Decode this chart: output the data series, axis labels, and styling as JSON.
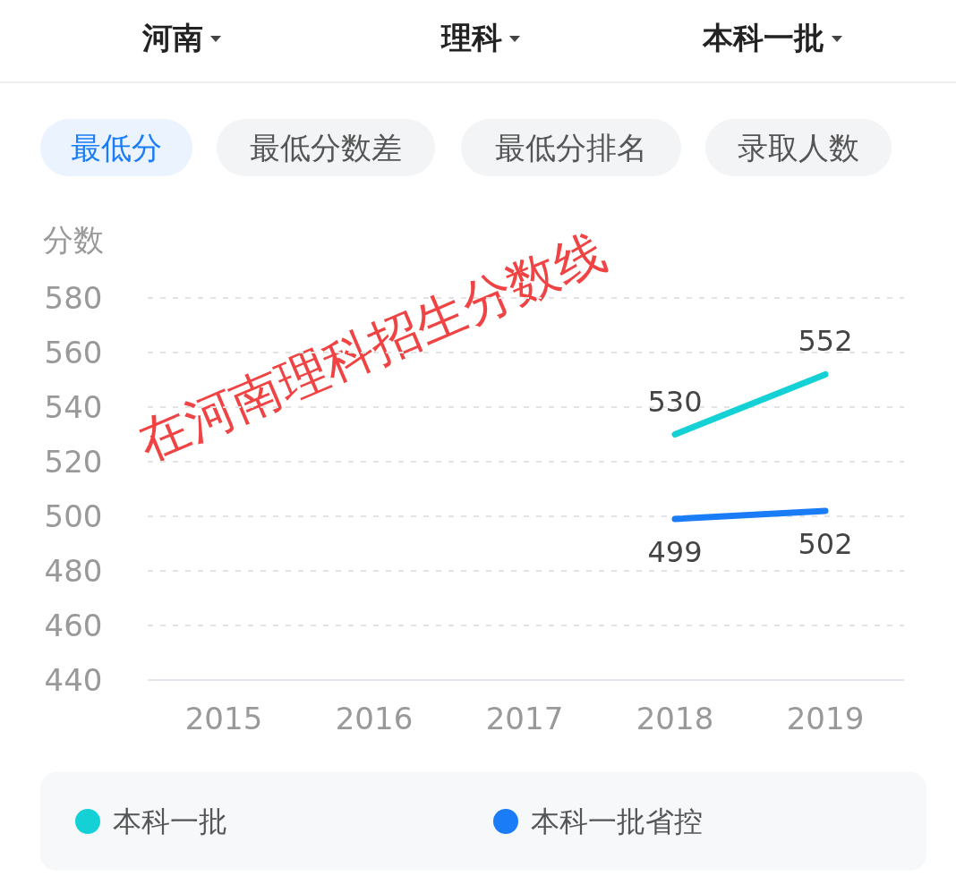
{
  "chart_data": {
    "type": "line",
    "ylabel": "分数",
    "annotations": [
      "河南",
      "理科",
      "本科一批",
      "最低分",
      "最低分数差",
      "最低分排名",
      "录取人数",
      "在河南理科招生分数线"
    ],
    "categories": [
      "2015",
      "2016",
      "2017",
      "2018",
      "2019"
    ],
    "series": [
      {
        "name": "本科一批",
        "color": "#14d1d6",
        "values": [
          null,
          null,
          null,
          530,
          552
        ]
      },
      {
        "name": "本科一批省控",
        "color": "#1a7df7",
        "values": [
          null,
          null,
          null,
          499,
          502
        ]
      }
    ],
    "ylim": [
      440,
      580
    ],
    "yticks": [
      440,
      460,
      480,
      500,
      520,
      540,
      560,
      580
    ],
    "grid": "y",
    "legend": "bottom",
    "data_labels": true,
    "marker": "none",
    "line_style": "solid"
  }
}
